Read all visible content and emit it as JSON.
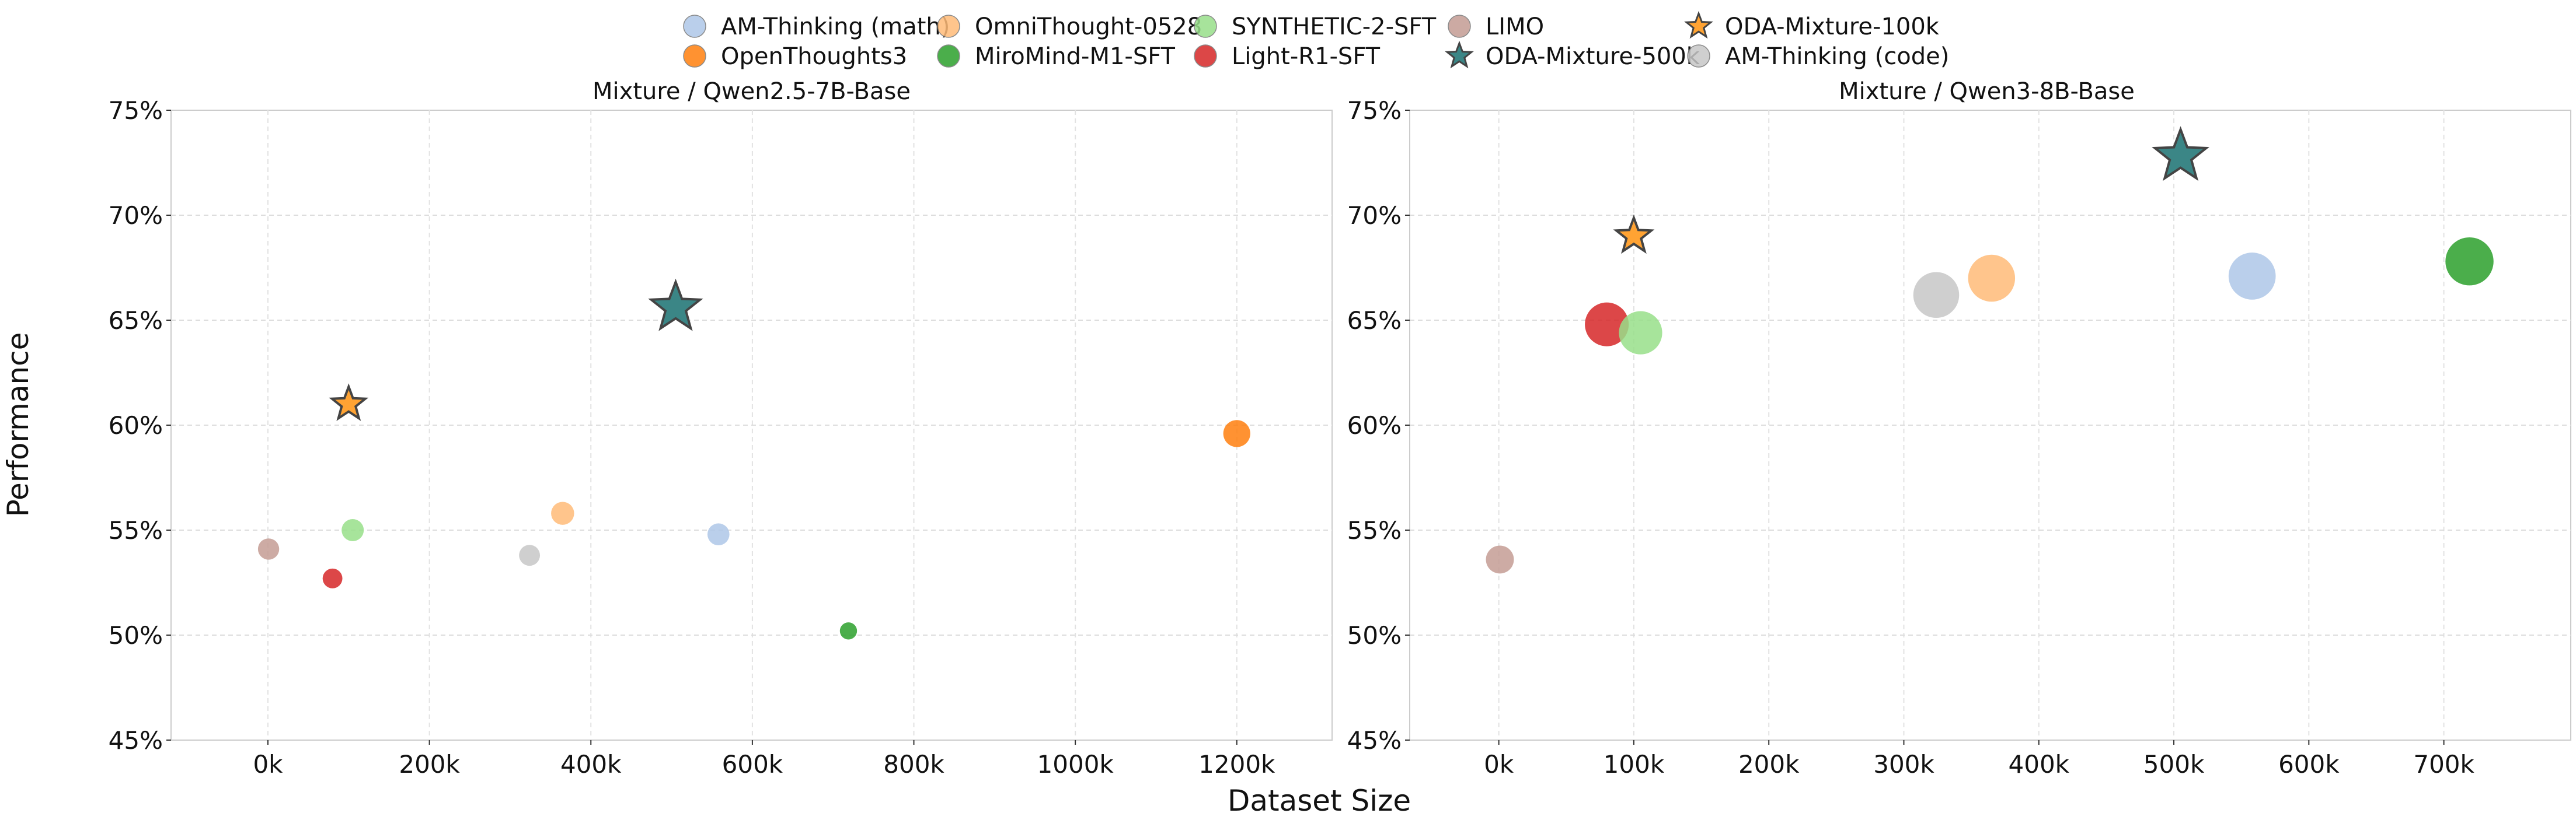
{
  "chart_data": {
    "type": "scatter",
    "xlabel": "Dataset Size",
    "ylabel": "Performance",
    "legend": {
      "placement": "top-center",
      "entries": [
        {
          "name": "AM-Thinking (math)",
          "color": "#aec7e8",
          "marker": "circle"
        },
        {
          "name": "OmniThought-0528",
          "color": "#ffbb78",
          "marker": "circle"
        },
        {
          "name": "SYNTHETIC-2-SFT",
          "color": "#98df8a",
          "marker": "circle"
        },
        {
          "name": "LIMO",
          "color": "#c49c94",
          "marker": "circle"
        },
        {
          "name": "ODA-Mixture-100k",
          "color": "#ffa333",
          "marker": "star"
        },
        {
          "name": "OpenThoughts3",
          "color": "#ff7f0e",
          "marker": "circle"
        },
        {
          "name": "MiroMind-M1-SFT",
          "color": "#2ca02c",
          "marker": "circle"
        },
        {
          "name": "Light-R1-SFT",
          "color": "#d62728",
          "marker": "circle"
        },
        {
          "name": "ODA-Mixture-500k",
          "color": "#3b8686",
          "marker": "star"
        },
        {
          "name": "AM-Thinking (code)",
          "color": "#c7c7c7",
          "marker": "circle"
        }
      ]
    },
    "grid": true,
    "panels": [
      {
        "title": "Mixture / Qwen2.5-7B-Base",
        "xlim": [
          -120000,
          1318000
        ],
        "ylim": [
          45,
          75
        ],
        "xticks": [
          0,
          200000,
          400000,
          600000,
          800000,
          1000000,
          1200000
        ],
        "xtick_labels": [
          "0k",
          "200k",
          "400k",
          "600k",
          "800k",
          "1000k",
          "1200k"
        ],
        "yticks": [
          45,
          50,
          55,
          60,
          65,
          70,
          75
        ],
        "ytick_labels": [
          "45%",
          "50%",
          "55%",
          "60%",
          "65%",
          "70%",
          "75%"
        ],
        "points": [
          {
            "name": "LIMO",
            "x": 800,
            "y": 54.1
          },
          {
            "name": "Light-R1-SFT",
            "x": 80000,
            "y": 52.7
          },
          {
            "name": "SYNTHETIC-2-SFT",
            "x": 105000,
            "y": 55.0
          },
          {
            "name": "AM-Thinking (code)",
            "x": 324000,
            "y": 53.8
          },
          {
            "name": "OmniThought-0528",
            "x": 365000,
            "y": 55.8
          },
          {
            "name": "AM-Thinking (math)",
            "x": 558000,
            "y": 54.8
          },
          {
            "name": "MiroMind-M1-SFT",
            "x": 719000,
            "y": 50.2
          },
          {
            "name": "OpenThoughts3",
            "x": 1200000,
            "y": 59.6
          },
          {
            "name": "ODA-Mixture-100k",
            "x": 100000,
            "y": 61.0
          },
          {
            "name": "ODA-Mixture-500k",
            "x": 505000,
            "y": 65.6
          }
        ]
      },
      {
        "title": "Mixture / Qwen3-8B-Base",
        "xlim": [
          -66000,
          794000
        ],
        "ylim": [
          45,
          75
        ],
        "xticks": [
          0,
          100000,
          200000,
          300000,
          400000,
          500000,
          600000,
          700000
        ],
        "xtick_labels": [
          "0k",
          "100k",
          "200k",
          "300k",
          "400k",
          "500k",
          "600k",
          "700k"
        ],
        "yticks": [
          45,
          50,
          55,
          60,
          65,
          70,
          75
        ],
        "ytick_labels": [
          "45%",
          "50%",
          "55%",
          "60%",
          "65%",
          "70%",
          "75%"
        ],
        "points": [
          {
            "name": "LIMO",
            "x": 800,
            "y": 53.6
          },
          {
            "name": "Light-R1-SFT",
            "x": 80000,
            "y": 64.8
          },
          {
            "name": "SYNTHETIC-2-SFT",
            "x": 105000,
            "y": 64.4
          },
          {
            "name": "AM-Thinking (code)",
            "x": 324000,
            "y": 66.2
          },
          {
            "name": "OmniThought-0528",
            "x": 365000,
            "y": 67.0
          },
          {
            "name": "AM-Thinking (math)",
            "x": 558000,
            "y": 67.1
          },
          {
            "name": "MiroMind-M1-SFT",
            "x": 719000,
            "y": 67.8
          },
          {
            "name": "ODA-Mixture-100k",
            "x": 100000,
            "y": 69.0
          },
          {
            "name": "ODA-Mixture-500k",
            "x": 505000,
            "y": 72.8
          }
        ]
      }
    ]
  }
}
